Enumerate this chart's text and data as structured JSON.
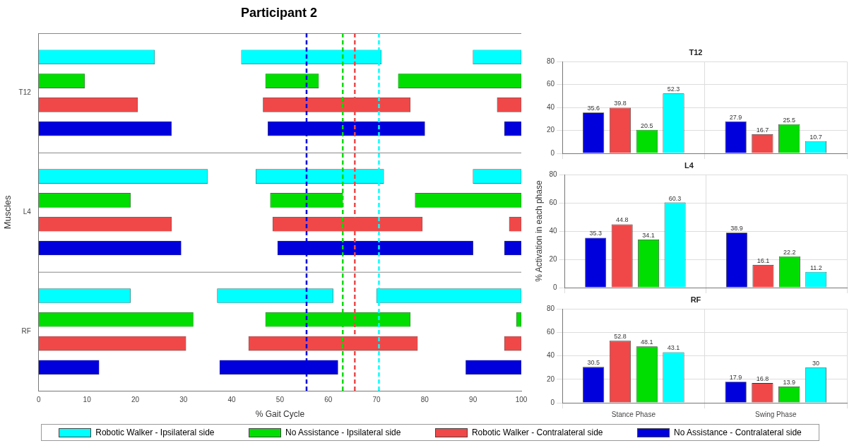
{
  "chart_data": [
    {
      "type": "bar",
      "orientation": "horizontal",
      "title": "Participant 2",
      "xlabel": "% Gait Cycle",
      "ylabel": "Muscles",
      "categories": [
        "T12",
        "L4",
        "RF"
      ],
      "xlim": [
        0,
        100
      ],
      "xticks": [
        0,
        10,
        20,
        30,
        40,
        50,
        60,
        70,
        80,
        90,
        100
      ],
      "legend": "bottom",
      "series": [
        {
          "name": "Robotic Walker - Ipsilateral side",
          "color": "#00ffff",
          "base": [
            0,
            0,
            0
          ],
          "values": [
            24,
            35,
            19
          ]
        },
        {
          "color": "#00ffff",
          "base": [
            42,
            45,
            37
          ],
          "values": [
            29,
            26.5,
            24
          ]
        },
        {
          "color": "#00ffff",
          "base": [
            90,
            90,
            70
          ],
          "values": [
            10,
            10,
            30
          ]
        },
        {
          "name": "No Assistance - Ipsilateral side",
          "color": "#00dd00",
          "base": [
            0,
            0,
            0
          ],
          "values": [
            9.5,
            19,
            32
          ]
        },
        {
          "color": "#00dd00",
          "base": [
            47,
            48,
            47
          ],
          "values": [
            11,
            15,
            30
          ]
        },
        {
          "color": "#00dd00",
          "base": [
            74.5,
            78,
            99
          ],
          "values": [
            25.5,
            22,
            1
          ]
        },
        {
          "name": "Robotic Walker - Contralateral side",
          "color": "#f04848",
          "base": [
            0,
            0,
            0
          ],
          "values": [
            20.5,
            27.5,
            30.5
          ]
        },
        {
          "color": "#f04848",
          "base": [
            46.5,
            48.5,
            43.5
          ],
          "values": [
            30.5,
            31,
            35
          ]
        },
        {
          "color": "#f04848",
          "base": [
            95,
            97.5,
            96.5
          ],
          "values": [
            5,
            2.5,
            3.5
          ]
        },
        {
          "name": "No Assistance - Contralateral side",
          "color": "#0000dd",
          "base": [
            0,
            0,
            0
          ],
          "values": [
            27.5,
            29.5,
            12.5
          ]
        },
        {
          "color": "#0000dd",
          "base": [
            47.5,
            49.5,
            37.5
          ],
          "values": [
            32.5,
            40.5,
            24.5
          ]
        },
        {
          "color": "#0000dd",
          "base": [
            96.5,
            96.5,
            88.5
          ],
          "values": [
            3.5,
            3.5,
            11.5
          ]
        }
      ],
      "ref_lines": [
        {
          "axis": "x",
          "value": 55.5,
          "color": "#0000dd",
          "line_style": "dashed"
        },
        {
          "axis": "x",
          "value": 63,
          "color": "#00dd00",
          "line_style": "dashed"
        },
        {
          "axis": "x",
          "value": 65.5,
          "color": "#f04848",
          "line_style": "dashed"
        },
        {
          "axis": "x",
          "value": 70.5,
          "color": "#00ffff",
          "line_style": "dashed"
        }
      ]
    },
    {
      "type": "bar",
      "title": "T12",
      "categories": [
        null,
        null
      ],
      "ylim": [
        0,
        80
      ],
      "yticks": [
        0,
        20,
        40,
        60,
        80
      ],
      "grid": true,
      "data_labels": true,
      "tick_labels": "y",
      "legend": false,
      "series": [
        {
          "color": "#0000dd",
          "values": [
            35.6,
            27.9
          ]
        },
        {
          "color": "#f04848",
          "values": [
            39.8,
            16.7
          ]
        },
        {
          "color": "#00dd00",
          "values": [
            20.5,
            25.5
          ]
        },
        {
          "color": "#00ffff",
          "values": [
            52.3,
            10.7
          ]
        }
      ]
    },
    {
      "type": "bar",
      "title": "L4",
      "ylabel": "% Activation in each phase",
      "categories": [
        null,
        null
      ],
      "ylim": [
        0,
        80
      ],
      "yticks": [
        0,
        20,
        40,
        60,
        80
      ],
      "grid": true,
      "data_labels": true,
      "tick_labels": "y",
      "legend": false,
      "series": [
        {
          "color": "#0000dd",
          "values": [
            35.3,
            38.9
          ]
        },
        {
          "color": "#f04848",
          "values": [
            44.8,
            16.1
          ]
        },
        {
          "color": "#00dd00",
          "values": [
            34.1,
            22.2
          ]
        },
        {
          "color": "#00ffff",
          "values": [
            60.3,
            11.2
          ]
        }
      ]
    },
    {
      "type": "bar",
      "title": "RF",
      "categories": [
        "Stance Phase",
        "Swing Phase"
      ],
      "ylim": [
        0,
        80
      ],
      "yticks": [
        0,
        20,
        40,
        60,
        80
      ],
      "grid": true,
      "data_labels": true,
      "legend": false,
      "series": [
        {
          "color": "#0000dd",
          "values": [
            30.5,
            17.9
          ]
        },
        {
          "color": "#f04848",
          "values": [
            52.8,
            16.8
          ]
        },
        {
          "color": "#00dd00",
          "values": [
            48.1,
            13.9
          ]
        },
        {
          "color": "#00ffff",
          "values": [
            43.1,
            30
          ]
        }
      ]
    }
  ]
}
